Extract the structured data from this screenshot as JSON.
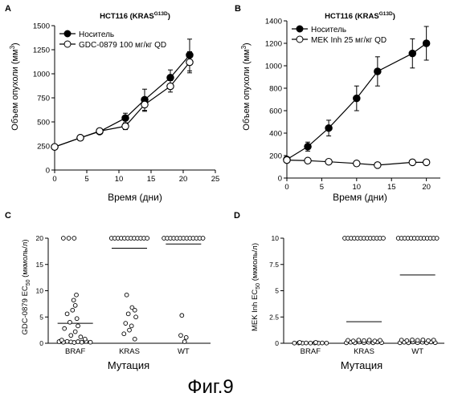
{
  "figure_caption": "Фиг.9",
  "chart_data": [
    {
      "id": "A",
      "panel_label": "A",
      "type": "line",
      "title": "HCT116 (KRAS",
      "title_sup": "G13D",
      "title_close": ")",
      "xlabel": "Время (дни)",
      "ylabel": "Объем опухоли (мм",
      "ylabel_sup": "3",
      "ylabel_close": ")",
      "xlim": [
        0,
        25
      ],
      "ylim": [
        0,
        1500
      ],
      "xticks": [
        0,
        5,
        10,
        15,
        20,
        25
      ],
      "yticks": [
        0,
        250,
        500,
        750,
        1000,
        1250,
        1500
      ],
      "legend_position": "top-left",
      "series": [
        {
          "name": "Носитель",
          "marker": "filled",
          "x": [
            0,
            4,
            7,
            11,
            14,
            18,
            21
          ],
          "y": [
            240,
            335,
            400,
            540,
            730,
            960,
            1195
          ],
          "err": [
            0,
            15,
            20,
            50,
            110,
            80,
            165
          ]
        },
        {
          "name": "GDC-0879 100  мг/кг  QD",
          "marker": "open",
          "x": [
            0,
            4,
            7,
            11,
            14,
            18,
            21
          ],
          "y": [
            240,
            335,
            405,
            455,
            680,
            870,
            1120
          ],
          "err": [
            0,
            15,
            20,
            35,
            70,
            60,
            110
          ]
        }
      ]
    },
    {
      "id": "B",
      "panel_label": "B",
      "type": "line",
      "title": "HCT116 (KRAS",
      "title_sup": "G13D",
      "title_close": ")",
      "xlabel": "Время (дни)",
      "ylabel": "Объем опухоли (мм",
      "ylabel_sup": "3",
      "ylabel_close": ")",
      "xlim": [
        0,
        22
      ],
      "ylim": [
        0,
        1400
      ],
      "xticks": [
        0,
        5,
        10,
        15,
        20
      ],
      "yticks": [
        0,
        200,
        400,
        600,
        800,
        1000,
        1200,
        1400
      ],
      "legend_position": "top-left",
      "series": [
        {
          "name": "Носитель",
          "marker": "filled",
          "x": [
            0,
            3,
            6,
            10,
            13,
            18,
            20
          ],
          "y": [
            165,
            280,
            445,
            710,
            950,
            1110,
            1200
          ],
          "err": [
            10,
            40,
            70,
            110,
            130,
            130,
            150
          ]
        },
        {
          "name": "MEK Inh 25  мг/кг  QD",
          "marker": "open",
          "x": [
            0,
            3,
            6,
            10,
            13,
            18,
            20
          ],
          "y": [
            160,
            155,
            145,
            130,
            115,
            140,
            140
          ],
          "err": [
            10,
            10,
            10,
            10,
            10,
            10,
            10
          ]
        }
      ]
    },
    {
      "id": "C",
      "panel_label": "C",
      "type": "scatter",
      "ylabel": "GDC-0879 EC",
      "ylabel_sub": "50",
      "ylabel_close": " (мкмоль/л)",
      "xlabel": "Мутация",
      "categories": [
        "BRAF",
        "KRAS",
        "WT"
      ],
      "ylim": [
        0,
        20
      ],
      "yticks": [
        0,
        5,
        10,
        15,
        20
      ],
      "medians": [
        3.8,
        18.1,
        18.9
      ],
      "points": [
        [
          [
            -0.22,
            20
          ],
          [
            -0.12,
            20
          ],
          [
            -0.02,
            20
          ],
          [
            0.02,
            9.2
          ],
          [
            -0.03,
            8.2
          ],
          [
            0.0,
            7.2
          ],
          [
            -0.05,
            6.3
          ],
          [
            -0.15,
            5.6
          ],
          [
            0.03,
            4.7
          ],
          [
            -0.1,
            4.0
          ],
          [
            0.05,
            3.3
          ],
          [
            -0.2,
            2.8
          ],
          [
            0.0,
            2.2
          ],
          [
            -0.08,
            1.5
          ],
          [
            0.1,
            1.2
          ],
          [
            -0.3,
            0.3
          ],
          [
            -0.22,
            0.2
          ],
          [
            -0.15,
            0.35
          ],
          [
            -0.08,
            0.25
          ],
          [
            -0.02,
            0.15
          ],
          [
            0.05,
            0.3
          ],
          [
            0.12,
            0.2
          ],
          [
            0.2,
            0.35
          ],
          [
            0.28,
            0.2
          ],
          [
            -0.25,
            0.6
          ],
          [
            0.18,
            0.8
          ]
        ],
        [
          [
            -0.33,
            20
          ],
          [
            -0.27,
            20
          ],
          [
            -0.21,
            20
          ],
          [
            -0.15,
            20
          ],
          [
            -0.09,
            20
          ],
          [
            -0.03,
            20
          ],
          [
            0.03,
            20
          ],
          [
            0.09,
            20
          ],
          [
            0.15,
            20
          ],
          [
            0.21,
            20
          ],
          [
            0.27,
            20
          ],
          [
            0.33,
            20
          ],
          [
            -0.05,
            9.2
          ],
          [
            0.05,
            6.8
          ],
          [
            0.1,
            6.3
          ],
          [
            -0.02,
            5.6
          ],
          [
            0.12,
            5.0
          ],
          [
            -0.07,
            3.8
          ],
          [
            0.04,
            3.3
          ],
          [
            0.0,
            2.5
          ],
          [
            -0.1,
            1.8
          ],
          [
            0.1,
            0.8
          ]
        ],
        [
          [
            -0.36,
            20
          ],
          [
            -0.3,
            20
          ],
          [
            -0.24,
            20
          ],
          [
            -0.18,
            20
          ],
          [
            -0.12,
            20
          ],
          [
            -0.06,
            20
          ],
          [
            0.0,
            20
          ],
          [
            0.06,
            20
          ],
          [
            0.12,
            20
          ],
          [
            0.18,
            20
          ],
          [
            0.24,
            20
          ],
          [
            0.3,
            20
          ],
          [
            0.36,
            20
          ],
          [
            -0.03,
            5.3
          ],
          [
            -0.05,
            1.5
          ],
          [
            0.05,
            1.1
          ],
          [
            0.02,
            0.3
          ]
        ]
      ]
    },
    {
      "id": "D",
      "panel_label": "D",
      "type": "scatter",
      "ylabel": "MEK Inh EC",
      "ylabel_sub": "50",
      "ylabel_close": " (мкмоль/л)",
      "xlabel": "Мутация",
      "categories": [
        "BRAF",
        "KRAS",
        "WT"
      ],
      "ylim": [
        0,
        10
      ],
      "yticks": [
        0,
        2.5,
        5,
        7.5,
        10
      ],
      "medians": [
        0.03,
        2.05,
        6.5
      ],
      "points": [
        [
          [
            -0.3,
            0.02
          ],
          [
            -0.22,
            0.03
          ],
          [
            -0.15,
            0.02
          ],
          [
            -0.08,
            0.03
          ],
          [
            0.0,
            0.02
          ],
          [
            0.08,
            0.03
          ],
          [
            0.15,
            0.02
          ],
          [
            0.22,
            0.03
          ],
          [
            0.3,
            0.02
          ],
          [
            -0.2,
            0.08
          ],
          [
            0.1,
            0.08
          ]
        ],
        [
          [
            -0.36,
            10
          ],
          [
            -0.3,
            10
          ],
          [
            -0.24,
            10
          ],
          [
            -0.18,
            10
          ],
          [
            -0.12,
            10
          ],
          [
            -0.06,
            10
          ],
          [
            0.0,
            10
          ],
          [
            0.06,
            10
          ],
          [
            0.12,
            10
          ],
          [
            0.18,
            10
          ],
          [
            0.24,
            10
          ],
          [
            0.3,
            10
          ],
          [
            0.36,
            10
          ],
          [
            -0.33,
            0.05
          ],
          [
            -0.25,
            0.1
          ],
          [
            -0.17,
            0.05
          ],
          [
            -0.09,
            0.12
          ],
          [
            0.0,
            0.06
          ],
          [
            0.09,
            0.1
          ],
          [
            0.17,
            0.05
          ],
          [
            0.25,
            0.12
          ],
          [
            0.33,
            0.06
          ],
          [
            -0.3,
            0.28
          ],
          [
            -0.2,
            0.22
          ],
          [
            -0.1,
            0.3
          ],
          [
            0.0,
            0.25
          ],
          [
            0.1,
            0.3
          ],
          [
            0.2,
            0.22
          ],
          [
            0.3,
            0.28
          ]
        ],
        [
          [
            -0.36,
            10
          ],
          [
            -0.3,
            10
          ],
          [
            -0.24,
            10
          ],
          [
            -0.18,
            10
          ],
          [
            -0.12,
            10
          ],
          [
            -0.06,
            10
          ],
          [
            0.0,
            10
          ],
          [
            0.06,
            10
          ],
          [
            0.12,
            10
          ],
          [
            0.18,
            10
          ],
          [
            0.24,
            10
          ],
          [
            0.3,
            10
          ],
          [
            0.36,
            10
          ],
          [
            -0.33,
            0.05
          ],
          [
            -0.25,
            0.1
          ],
          [
            -0.17,
            0.05
          ],
          [
            -0.09,
            0.12
          ],
          [
            0.0,
            0.06
          ],
          [
            0.09,
            0.1
          ],
          [
            0.17,
            0.05
          ],
          [
            0.25,
            0.12
          ],
          [
            0.33,
            0.06
          ],
          [
            -0.3,
            0.3
          ],
          [
            -0.2,
            0.25
          ],
          [
            -0.1,
            0.32
          ],
          [
            0.0,
            0.28
          ],
          [
            0.1,
            0.32
          ],
          [
            0.2,
            0.25
          ],
          [
            0.3,
            0.3
          ]
        ]
      ]
    }
  ]
}
